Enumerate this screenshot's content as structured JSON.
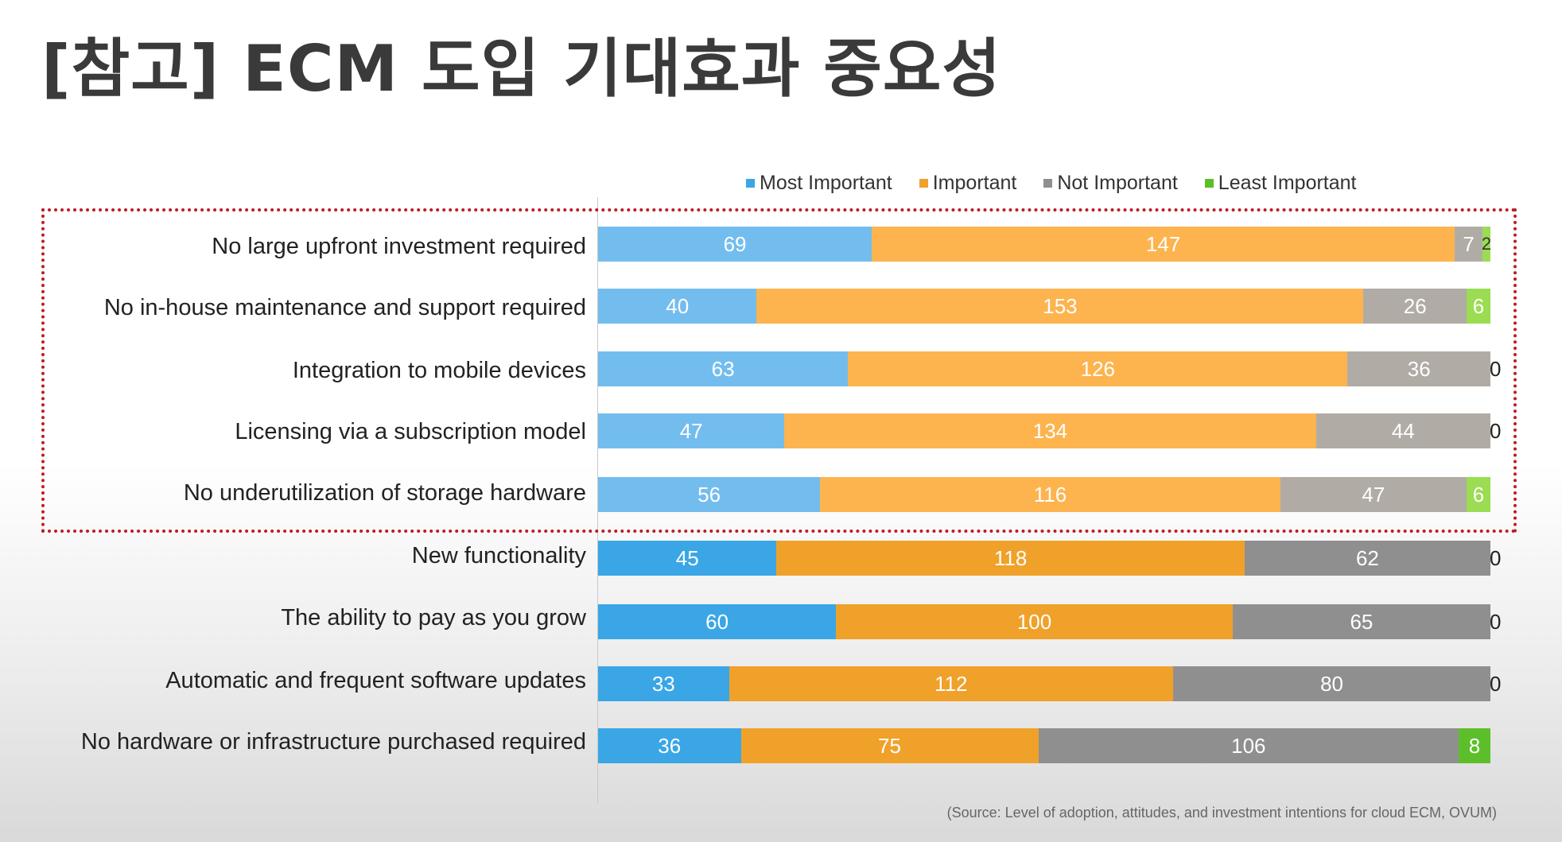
{
  "page": {
    "title": "[참고] ECM 도입 기대효과 중요성",
    "source": "(Source: Level of adoption, attitudes, and investment intentions for cloud ECM, OVUM)"
  },
  "chart_data": {
    "type": "bar",
    "orientation": "horizontal",
    "stacked": true,
    "title": "",
    "legend_position": "top-right",
    "categories": [
      "No large upfront investment required",
      "No in-house maintenance and support required",
      "Integration to mobile devices",
      "Licensing via a subscription model",
      "No underutilization of storage hardware",
      "New functionality",
      "The ability to pay as you grow",
      "Automatic and frequent software updates",
      "No hardware or infrastructure purchased required"
    ],
    "series": [
      {
        "name": "Most Important",
        "values": [
          69,
          40,
          63,
          47,
          56,
          45,
          60,
          33,
          36
        ]
      },
      {
        "name": "Important",
        "values": [
          147,
          153,
          126,
          134,
          116,
          118,
          100,
          112,
          75
        ]
      },
      {
        "name": "Not Important",
        "values": [
          7,
          26,
          36,
          44,
          47,
          62,
          65,
          80,
          106
        ]
      },
      {
        "name": "Least Important",
        "values": [
          2,
          6,
          0,
          0,
          6,
          0,
          0,
          0,
          8
        ]
      }
    ],
    "highlighted_rows": [
      0,
      1,
      2,
      3,
      4
    ],
    "colors": {
      "normal": [
        "#3aa6e6",
        "#f0a12a",
        "#8f8f8f",
        "#5cbf2a"
      ],
      "highlighted": [
        "#73bdee",
        "#fdb44f",
        "#b0aca5",
        "#9bdc52"
      ]
    },
    "label_colors": {
      "inside": "#ffffff",
      "outside": "#222222"
    },
    "xlim": [
      0,
      225
    ]
  }
}
